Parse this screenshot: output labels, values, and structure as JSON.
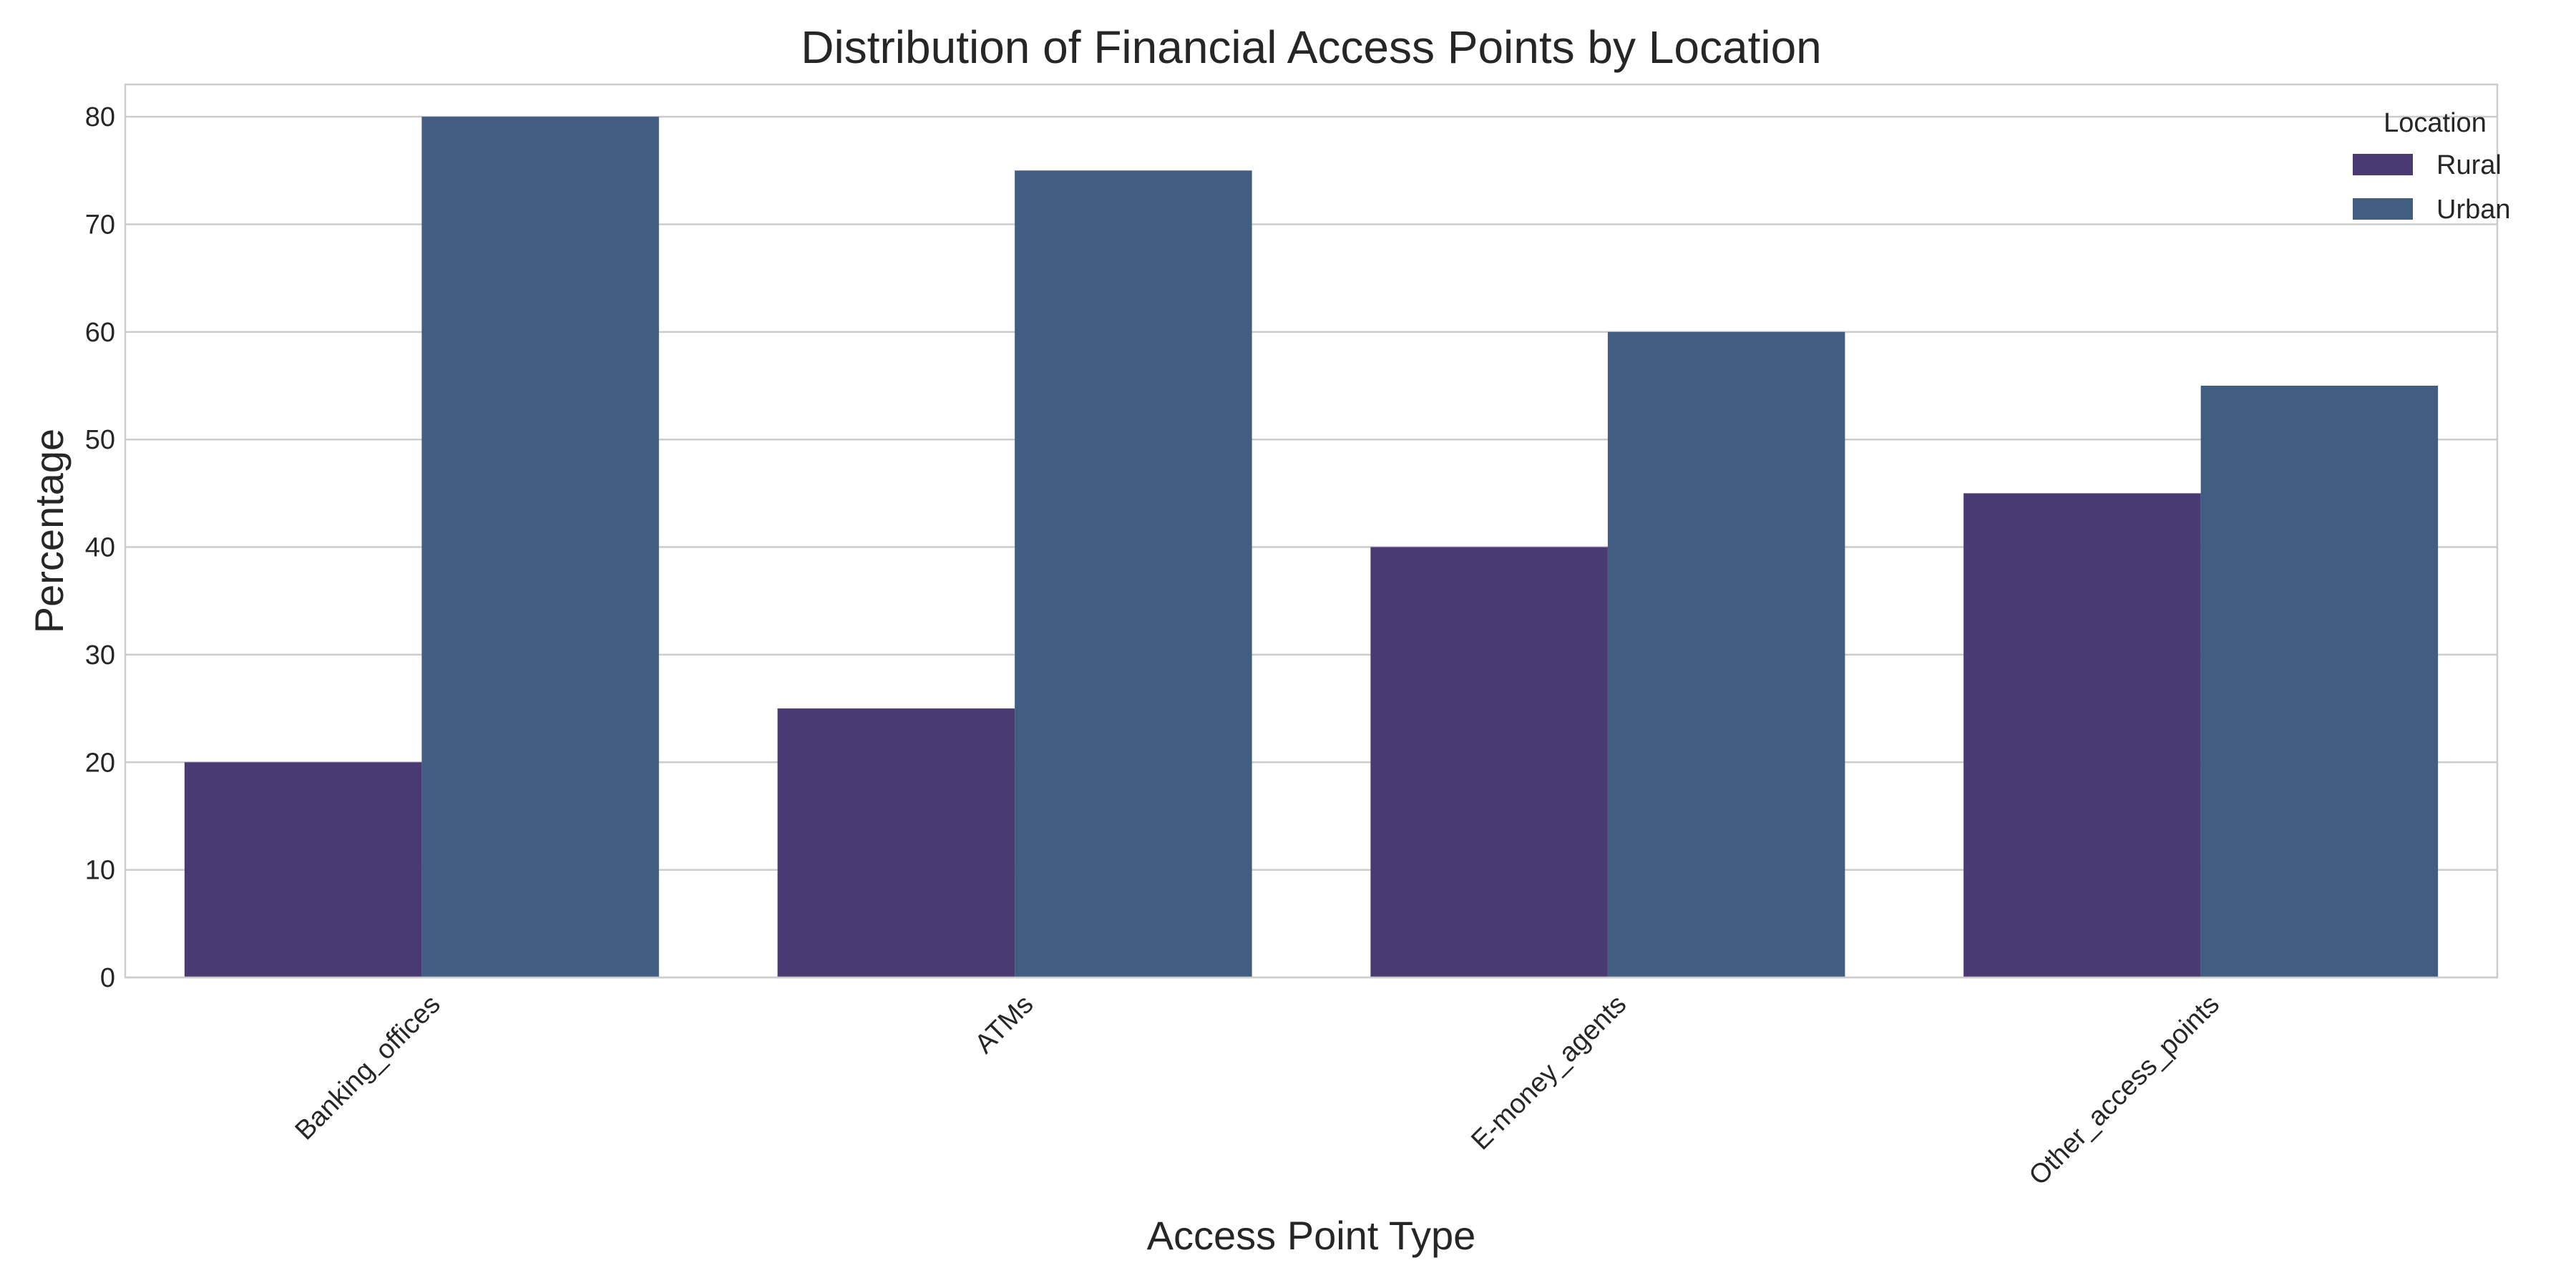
{
  "chart_data": {
    "type": "bar",
    "title": "Distribution of Financial Access Points by Location",
    "xlabel": "Access Point Type",
    "ylabel": "Percentage",
    "categories": [
      "Banking_offices",
      "ATMs",
      "E-money_agents",
      "Other_access_points"
    ],
    "series": [
      {
        "name": "Rural",
        "values": [
          20,
          25,
          40,
          45
        ],
        "color": "#4a3a74"
      },
      {
        "name": "Urban",
        "values": [
          80,
          75,
          60,
          55
        ],
        "color": "#415e82"
      }
    ],
    "ylim": [
      0,
      83
    ],
    "yticks": [
      0,
      10,
      20,
      30,
      40,
      50,
      60,
      70,
      80
    ],
    "grid": "horizontal",
    "legend": {
      "title": "Location",
      "placement": "top-right"
    }
  }
}
